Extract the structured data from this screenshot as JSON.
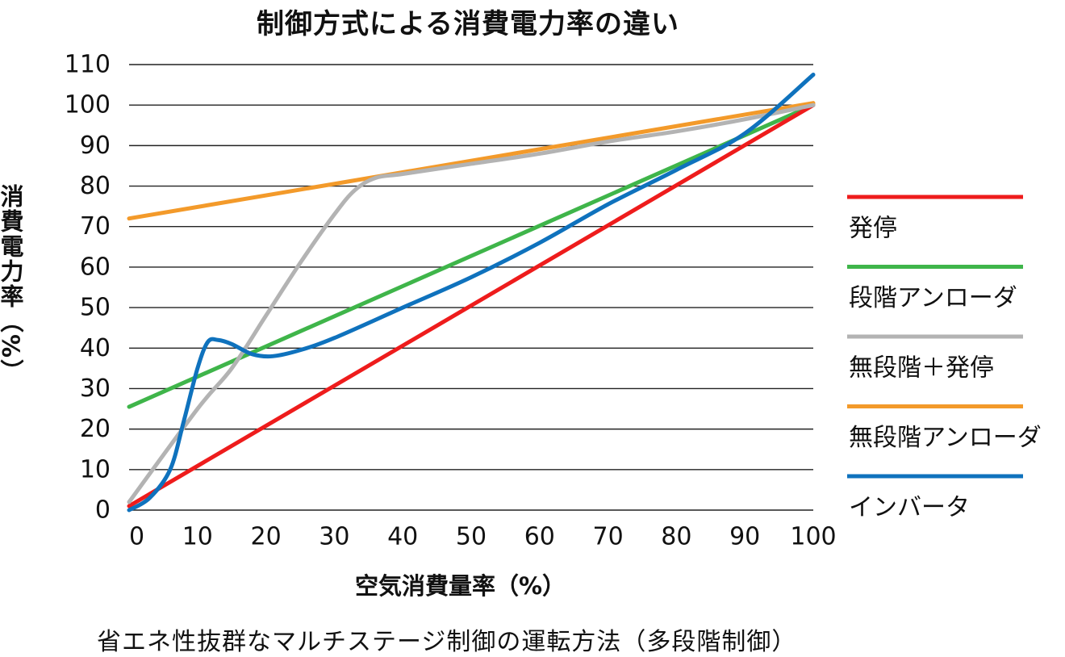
{
  "chart_data": {
    "type": "line",
    "title": "制御方式による消費電力率の違い",
    "xlabel": "空気消費量率（%）",
    "ylabel": "消費電力率（%）",
    "caption": "省エネ性抜群なマルチステージ制御の運転方法（多段階制御）",
    "xlim": [
      0,
      100
    ],
    "ylim": [
      0,
      110
    ],
    "x_ticks": [
      "0",
      "10",
      "20",
      "30",
      "40",
      "50",
      "60",
      "70",
      "80",
      "90",
      "100"
    ],
    "y_ticks": [
      "0",
      "10",
      "20",
      "30",
      "40",
      "50",
      "60",
      "70",
      "80",
      "90",
      "100",
      "110"
    ],
    "grid": "horizontal",
    "legend_position": "right",
    "series": [
      {
        "name": "発停",
        "color": "#ee1c1c",
        "points": [
          [
            0,
            1
          ],
          [
            100,
            100
          ]
        ]
      },
      {
        "name": "段階アンローダ",
        "color": "#3fb54a",
        "points": [
          [
            0,
            25.5
          ],
          [
            100,
            100
          ]
        ]
      },
      {
        "name": "無段階＋発停",
        "color": "#b3b3b3",
        "points": [
          [
            0,
            2
          ],
          [
            10,
            25
          ],
          [
            15,
            35
          ],
          [
            20,
            48
          ],
          [
            25,
            61
          ],
          [
            30,
            73
          ],
          [
            33,
            79
          ],
          [
            36,
            82
          ],
          [
            40,
            83
          ],
          [
            50,
            85.5
          ],
          [
            60,
            88
          ],
          [
            70,
            91
          ],
          [
            80,
            93.5
          ],
          [
            90,
            96.5
          ],
          [
            100,
            100
          ]
        ]
      },
      {
        "name": "無段階アンローダ",
        "color": "#f39a2a",
        "points": [
          [
            0,
            72
          ],
          [
            100,
            100.5
          ]
        ]
      },
      {
        "name": "インバータ",
        "color": "#0f72bd",
        "points": [
          [
            0,
            0
          ],
          [
            3,
            3
          ],
          [
            6,
            10
          ],
          [
            8,
            22
          ],
          [
            10,
            35
          ],
          [
            11.5,
            41.5
          ],
          [
            13,
            42
          ],
          [
            15,
            41
          ],
          [
            18,
            38.5
          ],
          [
            21,
            38
          ],
          [
            25,
            39.5
          ],
          [
            30,
            42.5
          ],
          [
            40,
            50
          ],
          [
            50,
            57.5
          ],
          [
            60,
            66
          ],
          [
            70,
            75.5
          ],
          [
            80,
            84
          ],
          [
            90,
            93
          ],
          [
            100,
            107.5
          ]
        ]
      }
    ]
  }
}
